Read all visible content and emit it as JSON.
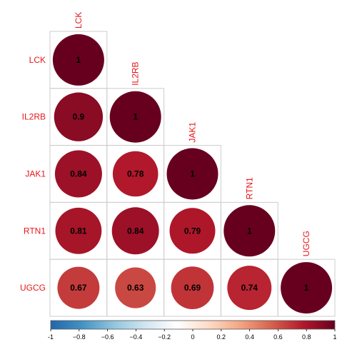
{
  "chart_data": {
    "type": "heatmap",
    "subtype": "correlation-circle-lower-triangle",
    "variables": [
      "LCK",
      "IL2RB",
      "JAK1",
      "RTN1",
      "UGCG"
    ],
    "matrix": [
      [
        1,
        null,
        null,
        null,
        null
      ],
      [
        0.9,
        1,
        null,
        null,
        null
      ],
      [
        0.84,
        0.78,
        1,
        null,
        null
      ],
      [
        0.81,
        0.84,
        0.79,
        1,
        null
      ],
      [
        0.67,
        0.63,
        0.69,
        0.74,
        1
      ]
    ],
    "value_labels": [
      [
        "1"
      ],
      [
        "0.9",
        "1"
      ],
      [
        "0.84",
        "0.78",
        "1"
      ],
      [
        "0.81",
        "0.84",
        "0.79",
        "1"
      ],
      [
        "0.67",
        "0.63",
        "0.69",
        "0.74",
        "1"
      ]
    ],
    "color_scale": {
      "range": [
        -1,
        1
      ],
      "ticks": [
        "-1",
        "−0.8",
        "−0.6",
        "−0.4",
        "−0.2",
        "0",
        "0.2",
        "0.4",
        "0.6",
        "0.8",
        "1"
      ],
      "colors": [
        "#2166ac",
        "#4393c3",
        "#92c5de",
        "#d1e5f0",
        "#ffffff",
        "#fddbc7",
        "#f4a582",
        "#d6604d",
        "#b2182b",
        "#67001f"
      ]
    },
    "label_color": "#e8161b"
  }
}
